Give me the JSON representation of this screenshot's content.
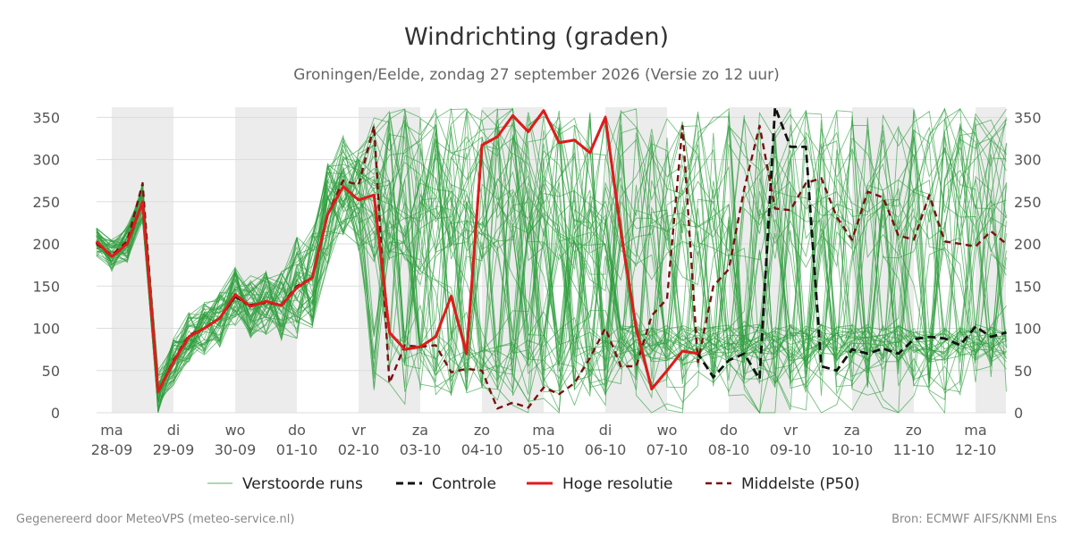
{
  "header": {
    "title": "Windrichting (graden)",
    "subtitle": "Groningen/Eelde, zondag 27 september 2026 (Versie zo 12 uur)"
  },
  "footer": {
    "left": "Gegenereerd door MeteoVPS (meteo-service.nl)",
    "right": "Bron: ECMWF AIFS/KNMI Ens"
  },
  "legend": {
    "ensemble": "Verstoorde runs",
    "control": "Controle",
    "hires": "Hoge resolutie",
    "median": "Middelste (P50)"
  },
  "colors": {
    "ensemble": "#2e9e3e",
    "control": "#111111",
    "hires": "#e01b1b",
    "median": "#7a1010",
    "weekend_shade": "#ececec",
    "grid": "#dddddd"
  },
  "chart_data": {
    "type": "line",
    "title": "Windrichting (graden)",
    "subtitle": "Groningen/Eelde, zondag 27 september 2026 (Versie zo 12 uur)",
    "ylim": [
      0,
      370
    ],
    "yticks": [
      0,
      50,
      100,
      150,
      200,
      250,
      300,
      350
    ],
    "y_axis_both_sides": true,
    "grid": true,
    "legend_position": "bottom",
    "day_range": [
      0,
      14.5
    ],
    "x_ticks": [
      {
        "day": 0,
        "weekday": "ma",
        "date": "28-09"
      },
      {
        "day": 1,
        "weekday": "di",
        "date": "29-09"
      },
      {
        "day": 2,
        "weekday": "wo",
        "date": "30-09"
      },
      {
        "day": 3,
        "weekday": "do",
        "date": "01-10"
      },
      {
        "day": 4,
        "weekday": "vr",
        "date": "02-10"
      },
      {
        "day": 5,
        "weekday": "za",
        "date": "03-10"
      },
      {
        "day": 6,
        "weekday": "zo",
        "date": "04-10"
      },
      {
        "day": 7,
        "weekday": "ma",
        "date": "05-10"
      },
      {
        "day": 8,
        "weekday": "di",
        "date": "06-10"
      },
      {
        "day": 9,
        "weekday": "wo",
        "date": "07-10"
      },
      {
        "day": 10,
        "weekday": "do",
        "date": "08-10"
      },
      {
        "day": 11,
        "weekday": "vr",
        "date": "09-10"
      },
      {
        "day": 12,
        "weekday": "za",
        "date": "10-10"
      },
      {
        "day": 13,
        "weekday": "zo",
        "date": "11-10"
      },
      {
        "day": 14,
        "weekday": "ma",
        "date": "12-10"
      }
    ],
    "shaded_days": [
      [
        0,
        1
      ],
      [
        2,
        3
      ],
      [
        4,
        5
      ],
      [
        6,
        7
      ],
      [
        8,
        9
      ],
      [
        10,
        11
      ],
      [
        12,
        13
      ],
      [
        14,
        14.5
      ]
    ],
    "hires": {
      "name": "Hoge resolutie",
      "x": [
        -0.25,
        0,
        0.25,
        0.5,
        0.75,
        1,
        1.25,
        1.5,
        1.75,
        2,
        2.25,
        2.5,
        2.75,
        3,
        3.25,
        3.5,
        3.75,
        4,
        4.25,
        4.5,
        4.75,
        5,
        5.25,
        5.5,
        5.75,
        6,
        6.25,
        6.5,
        6.75,
        7,
        7.25,
        7.5,
        7.75,
        8,
        8.25,
        8.5,
        8.75,
        9,
        9.25,
        9.5
      ],
      "y": [
        203,
        185,
        200,
        250,
        25,
        60,
        90,
        100,
        112,
        140,
        126,
        132,
        127,
        148,
        160,
        235,
        268,
        252,
        258,
        95,
        75,
        78,
        90,
        138,
        70,
        317,
        327,
        352,
        333,
        358,
        320,
        323,
        308,
        350,
        215,
        100,
        28,
        50,
        73,
        70
      ]
    },
    "control": {
      "name": "Controle",
      "x": [
        -0.25,
        0,
        0.25,
        0.5,
        0.75,
        1,
        1.25,
        1.5,
        1.75,
        2,
        2.25,
        2.5,
        2.75,
        3,
        3.25,
        3.5,
        3.75,
        4,
        4.25,
        4.5,
        4.75,
        5,
        5.25,
        5.5,
        5.75,
        6,
        6.25,
        6.5,
        6.75,
        7,
        7.25,
        7.5,
        7.75,
        8,
        8.25,
        8.5,
        8.75,
        9,
        9.25,
        9.5,
        9.75,
        10,
        10.25,
        10.5,
        10.75,
        11,
        11.25,
        11.5,
        11.75,
        12,
        12.25,
        12.5,
        12.75,
        13,
        13.25,
        13.5,
        13.75,
        14,
        14.25,
        14.5
      ],
      "y": [
        202,
        185,
        200,
        250,
        25,
        60,
        90,
        100,
        112,
        138,
        126,
        132,
        127,
        148,
        160,
        235,
        268,
        252,
        258,
        95,
        75,
        78,
        90,
        138,
        70,
        317,
        327,
        352,
        333,
        358,
        320,
        323,
        308,
        350,
        215,
        100,
        28,
        50,
        73,
        70,
        42,
        62,
        70,
        40,
        362,
        315,
        315,
        55,
        50,
        75,
        70,
        76,
        70,
        87,
        90,
        88,
        80,
        102,
        90,
        95
      ]
    },
    "median": {
      "name": "Middelste (P50)",
      "x": [
        -0.25,
        0,
        0.25,
        0.5,
        0.75,
        1,
        1.25,
        1.5,
        1.75,
        2,
        2.25,
        2.5,
        2.75,
        3,
        3.25,
        3.5,
        3.75,
        4,
        4.25,
        4.5,
        4.75,
        5,
        5.25,
        5.5,
        5.75,
        6,
        6.25,
        6.5,
        6.75,
        7,
        7.25,
        7.5,
        7.75,
        8,
        8.25,
        8.5,
        8.75,
        9,
        9.25,
        9.5,
        9.75,
        10,
        10.25,
        10.5,
        10.75,
        11,
        11.25,
        11.5,
        11.75,
        12,
        12.25,
        12.5,
        12.75,
        13,
        13.25,
        13.5,
        13.75,
        14,
        14.25,
        14.5
      ],
      "y": [
        200,
        187,
        203,
        272,
        25,
        62,
        92,
        100,
        112,
        137,
        128,
        130,
        128,
        150,
        160,
        235,
        275,
        270,
        340,
        35,
        80,
        78,
        80,
        48,
        52,
        50,
        5,
        12,
        6,
        30,
        22,
        35,
        65,
        100,
        55,
        55,
        115,
        135,
        340,
        60,
        150,
        170,
        265,
        340,
        242,
        240,
        272,
        278,
        232,
        205,
        262,
        255,
        210,
        205,
        258,
        203,
        200,
        197,
        215,
        200
      ]
    },
    "ensemble": {
      "name": "Verstoorde runs",
      "members": 50,
      "min": 0,
      "max": 360,
      "note_style": "thin green lines spanning nearly the full 0–360 range after day 4"
    }
  }
}
